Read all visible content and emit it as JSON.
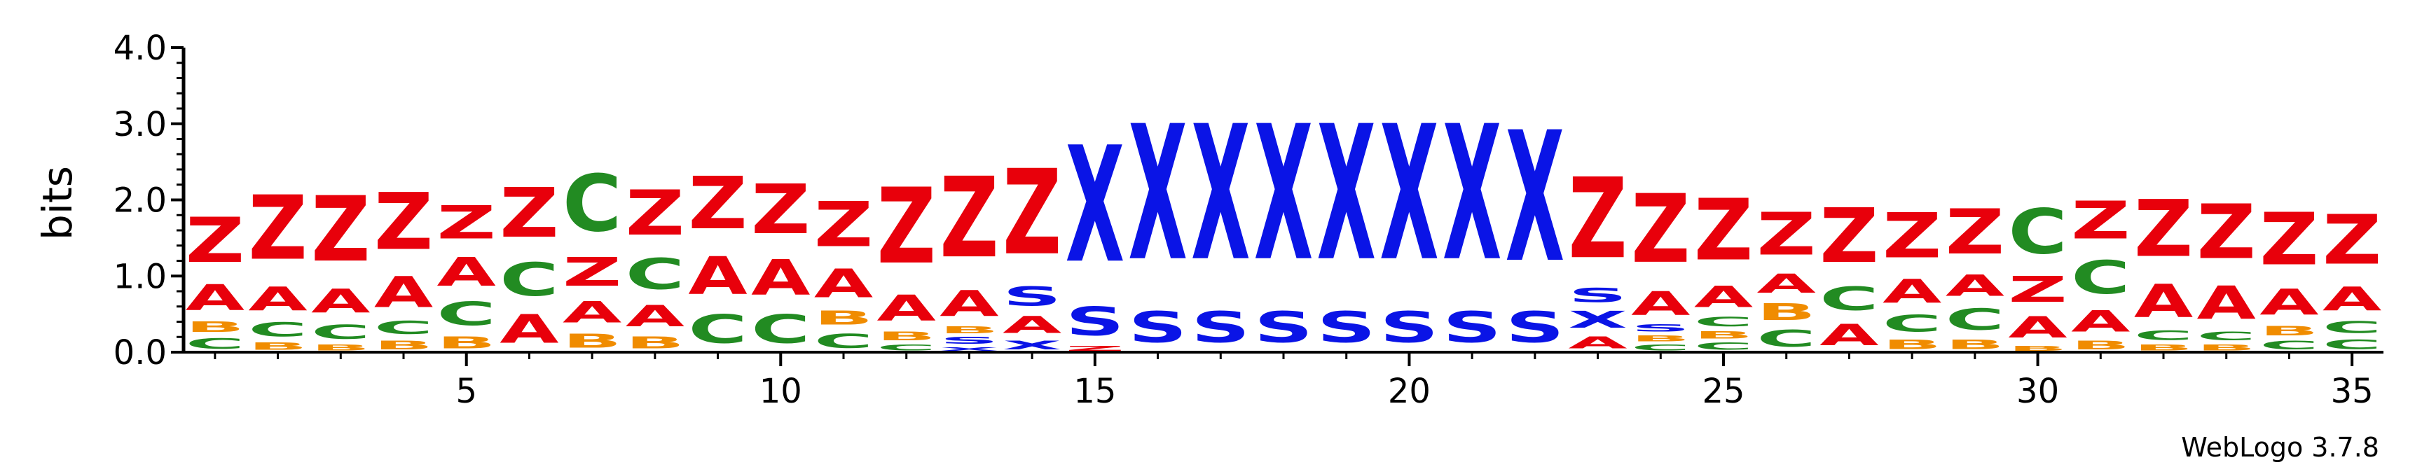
{
  "credit": "WebLogo 3.7.8",
  "colors": {
    "Z": "#e8000b",
    "A": "#e8000b",
    "X": "#0a14e6",
    "S": "#0a14e6",
    "C": "#228b22",
    "B": "#f08c00",
    "axis": "#000000"
  },
  "chart_data": {
    "type": "sequence-logo",
    "title": "",
    "xlabel": "",
    "ylabel": "bits",
    "ylim": [
      0,
      4.0
    ],
    "yticks": [
      "0.0",
      "1.0",
      "2.0",
      "3.0",
      "4.0"
    ],
    "xlim": [
      0.5,
      35.5
    ],
    "xticks": [
      "5",
      "10",
      "15",
      "20",
      "25",
      "30",
      "35"
    ],
    "xtick_values": [
      5,
      10,
      15,
      20,
      25,
      30,
      35
    ],
    "positions": [
      {
        "pos": 1,
        "stack": [
          [
            "C",
            0.22
          ],
          [
            "B",
            0.22
          ],
          [
            "A",
            0.55
          ],
          [
            "Z",
            0.95
          ]
        ]
      },
      {
        "pos": 2,
        "stack": [
          [
            "B",
            0.15
          ],
          [
            "C",
            0.3
          ],
          [
            "A",
            0.5
          ],
          [
            "Z",
            1.35
          ]
        ]
      },
      {
        "pos": 3,
        "stack": [
          [
            "B",
            0.12
          ],
          [
            "C",
            0.3
          ],
          [
            "A",
            0.5
          ],
          [
            "Z",
            1.38
          ]
        ]
      },
      {
        "pos": 4,
        "stack": [
          [
            "B",
            0.18
          ],
          [
            "C",
            0.28
          ],
          [
            "A",
            0.65
          ],
          [
            "Z",
            1.2
          ]
        ]
      },
      {
        "pos": 5,
        "stack": [
          [
            "B",
            0.25
          ],
          [
            "C",
            0.5
          ],
          [
            "A",
            0.6
          ],
          [
            "Z",
            0.7
          ]
        ]
      },
      {
        "pos": 6,
        "stack": [
          [
            "A",
            0.6
          ],
          [
            "C",
            0.7
          ],
          [
            "Z",
            1.05
          ]
        ]
      },
      {
        "pos": 7,
        "stack": [
          [
            "B",
            0.3
          ],
          [
            "A",
            0.45
          ],
          [
            "Z",
            0.6
          ],
          [
            "C",
            1.2
          ]
        ]
      },
      {
        "pos": 8,
        "stack": [
          [
            "B",
            0.25
          ],
          [
            "A",
            0.45
          ],
          [
            "C",
            0.65
          ],
          [
            "Z",
            0.95
          ]
        ]
      },
      {
        "pos": 9,
        "stack": [
          [
            "C",
            0.6
          ],
          [
            "A",
            0.8
          ],
          [
            "Z",
            1.1
          ]
        ]
      },
      {
        "pos": 10,
        "stack": [
          [
            "C",
            0.6
          ],
          [
            "A",
            0.75
          ],
          [
            "Z",
            1.05
          ]
        ]
      },
      {
        "pos": 11,
        "stack": [
          [
            "C",
            0.3
          ],
          [
            "B",
            0.3
          ],
          [
            "A",
            0.6
          ],
          [
            "Z",
            0.95
          ]
        ]
      },
      {
        "pos": 12,
        "stack": [
          [
            "C",
            0.12
          ],
          [
            "B",
            0.18
          ],
          [
            "A",
            0.55
          ],
          [
            "Z",
            1.6
          ]
        ]
      },
      {
        "pos": 13,
        "stack": [
          [
            "X",
            0.08
          ],
          [
            "S",
            0.14
          ],
          [
            "B",
            0.14
          ],
          [
            "A",
            0.55
          ],
          [
            "Z",
            1.7
          ]
        ]
      },
      {
        "pos": 14,
        "stack": [
          [
            "X",
            0.18
          ],
          [
            "A",
            0.35
          ],
          [
            "S",
            0.4
          ],
          [
            "Z",
            1.8
          ]
        ]
      },
      {
        "pos": 15,
        "stack": [
          [
            "Z",
            0.1
          ],
          [
            "S",
            0.6
          ],
          [
            "X",
            2.45
          ]
        ]
      },
      {
        "pos": 16,
        "stack": [
          [
            "S",
            0.65
          ],
          [
            "X",
            2.85
          ]
        ]
      },
      {
        "pos": 17,
        "stack": [
          [
            "S",
            0.65
          ],
          [
            "X",
            2.85
          ]
        ]
      },
      {
        "pos": 18,
        "stack": [
          [
            "S",
            0.65
          ],
          [
            "X",
            2.85
          ]
        ]
      },
      {
        "pos": 19,
        "stack": [
          [
            "S",
            0.65
          ],
          [
            "X",
            2.85
          ]
        ]
      },
      {
        "pos": 20,
        "stack": [
          [
            "S",
            0.65
          ],
          [
            "X",
            2.85
          ]
        ]
      },
      {
        "pos": 21,
        "stack": [
          [
            "S",
            0.65
          ],
          [
            "X",
            2.85
          ]
        ]
      },
      {
        "pos": 22,
        "stack": [
          [
            "S",
            0.65
          ],
          [
            "X",
            2.75
          ]
        ]
      },
      {
        "pos": 23,
        "stack": [
          [
            "A",
            0.25
          ],
          [
            "X",
            0.35
          ],
          [
            "S",
            0.3
          ],
          [
            "Z",
            1.7
          ]
        ]
      },
      {
        "pos": 24,
        "stack": [
          [
            "C",
            0.12
          ],
          [
            "B",
            0.12
          ],
          [
            "S",
            0.15
          ],
          [
            "A",
            0.5
          ],
          [
            "Z",
            1.45
          ]
        ]
      },
      {
        "pos": 25,
        "stack": [
          [
            "C",
            0.15
          ],
          [
            "B",
            0.15
          ],
          [
            "C",
            0.2
          ],
          [
            "A",
            0.45
          ],
          [
            "Z",
            1.3
          ]
        ]
      },
      {
        "pos": 26,
        "stack": [
          [
            "C",
            0.35
          ],
          [
            "B",
            0.35
          ],
          [
            "A",
            0.4
          ],
          [
            "Z",
            0.9
          ]
        ]
      },
      {
        "pos": 27,
        "stack": [
          [
            "A",
            0.45
          ],
          [
            "C",
            0.5
          ],
          [
            "Z",
            1.15
          ]
        ]
      },
      {
        "pos": 28,
        "stack": [
          [
            "B",
            0.2
          ],
          [
            "C",
            0.35
          ],
          [
            "A",
            0.5
          ],
          [
            "Z",
            0.95
          ]
        ]
      },
      {
        "pos": 29,
        "stack": [
          [
            "B",
            0.2
          ],
          [
            "C",
            0.45
          ],
          [
            "A",
            0.45
          ],
          [
            "Z",
            0.95
          ]
        ]
      },
      {
        "pos": 30,
        "stack": [
          [
            "B",
            0.1
          ],
          [
            "A",
            0.45
          ],
          [
            "Z",
            0.55
          ],
          [
            "C",
            0.95
          ]
        ]
      },
      {
        "pos": 31,
        "stack": [
          [
            "B",
            0.18
          ],
          [
            "A",
            0.45
          ],
          [
            "C",
            0.7
          ],
          [
            "Z",
            0.8
          ]
        ]
      },
      {
        "pos": 32,
        "stack": [
          [
            "B",
            0.12
          ],
          [
            "C",
            0.2
          ],
          [
            "A",
            0.7
          ],
          [
            "Z",
            1.2
          ]
        ]
      },
      {
        "pos": 33,
        "stack": [
          [
            "B",
            0.12
          ],
          [
            "C",
            0.18
          ],
          [
            "A",
            0.7
          ],
          [
            "Z",
            1.15
          ]
        ]
      },
      {
        "pos": 34,
        "stack": [
          [
            "C",
            0.18
          ],
          [
            "B",
            0.2
          ],
          [
            "A",
            0.55
          ],
          [
            "Z",
            1.1
          ]
        ]
      },
      {
        "pos": 35,
        "stack": [
          [
            "C",
            0.2
          ],
          [
            "C",
            0.25
          ],
          [
            "A",
            0.5
          ],
          [
            "Z",
            1.05
          ]
        ]
      }
    ]
  }
}
